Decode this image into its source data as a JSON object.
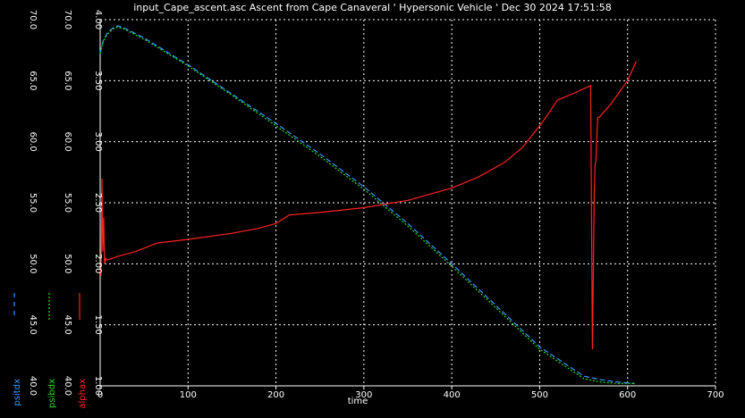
{
  "title": "input_Cape_ascent.asc Ascent from Cape Canaveral ' Hypersonic Vehicle ' Dec 30 2024 17:51:58",
  "chart_data": {
    "type": "line",
    "title": "input_Cape_ascent.asc Ascent from Cape Canaveral ' Hypersonic Vehicle ' Dec 30 2024 17:51:58",
    "xlabel": "time",
    "xlim": [
      0,
      700
    ],
    "x_ticks": [
      "0",
      "100",
      "200",
      "300",
      "400",
      "500",
      "600",
      "700"
    ],
    "grid": true,
    "axes": [
      {
        "id": "psitdx",
        "label": "psitdx",
        "color": "#3399ff",
        "ylim": [
          40,
          70
        ],
        "ticks": [
          "40.0",
          "45.0",
          "50.0",
          "55.0",
          "60.0",
          "65.0",
          "70.0"
        ]
      },
      {
        "id": "psibdx",
        "label": "psibdx",
        "color": "#22dd22",
        "ylim": [
          40,
          70
        ],
        "ticks": [
          "40.0",
          "45.0",
          "50.0",
          "55.0",
          "60.0",
          "65.0",
          "70.0"
        ]
      },
      {
        "id": "alphax",
        "label": "alphax",
        "color": "#ff2222",
        "ylim": [
          1.0,
          4.0
        ],
        "ticks": [
          "1.00",
          "1.50",
          "2.00",
          "2.50",
          "3.00",
          "3.50",
          "4.00"
        ]
      }
    ],
    "series": [
      {
        "name": "psitdx",
        "axis": "psitdx",
        "color": "#3399ff",
        "style": "dashed",
        "x": [
          0,
          3,
          8,
          14,
          20,
          28,
          50,
          100,
          150,
          200,
          250,
          300,
          350,
          400,
          450,
          500,
          550,
          570,
          590,
          608
        ],
        "y": [
          67.3,
          68.2,
          68.9,
          69.3,
          69.5,
          69.3,
          68.5,
          66.3,
          63.9,
          61.5,
          59.0,
          56.3,
          53.3,
          50.0,
          46.6,
          43.2,
          40.8,
          40.5,
          40.3,
          40.2
        ]
      },
      {
        "name": "psibdx",
        "axis": "psibdx",
        "color": "#22dd22",
        "style": "dotted",
        "x": [
          0,
          3,
          8,
          14,
          20,
          28,
          50,
          100,
          150,
          200,
          250,
          300,
          350,
          400,
          450,
          500,
          550,
          570,
          590,
          608
        ],
        "y": [
          67.2,
          68.1,
          68.8,
          69.2,
          69.4,
          69.2,
          68.4,
          66.2,
          63.8,
          61.3,
          58.8,
          56.1,
          53.1,
          49.8,
          46.4,
          43.0,
          40.6,
          40.3,
          40.2,
          40.2
        ]
      },
      {
        "name": "alphax",
        "axis": "alphax",
        "color": "#ff2222",
        "style": "solid",
        "x": [
          0,
          1,
          2,
          3,
          4,
          5,
          6,
          7,
          8,
          12,
          20,
          40,
          65,
          100,
          150,
          180,
          200,
          215,
          250,
          300,
          350,
          400,
          430,
          460,
          480,
          500,
          510,
          520,
          540,
          555,
          558,
          560,
          562,
          563,
          564,
          566,
          568,
          570,
          580,
          600,
          610
        ],
        "y": [
          1.95,
          1.9,
          2.7,
          2.1,
          2.38,
          2.0,
          2.05,
          2.03,
          2.03,
          2.04,
          2.06,
          2.1,
          2.17,
          2.2,
          2.25,
          2.29,
          2.33,
          2.4,
          2.42,
          2.46,
          2.52,
          2.62,
          2.71,
          2.83,
          2.95,
          3.13,
          3.23,
          3.34,
          3.4,
          3.45,
          3.46,
          1.3,
          2.55,
          2.8,
          2.85,
          3.2,
          3.2,
          3.22,
          3.3,
          3.5,
          3.66
        ]
      }
    ]
  }
}
